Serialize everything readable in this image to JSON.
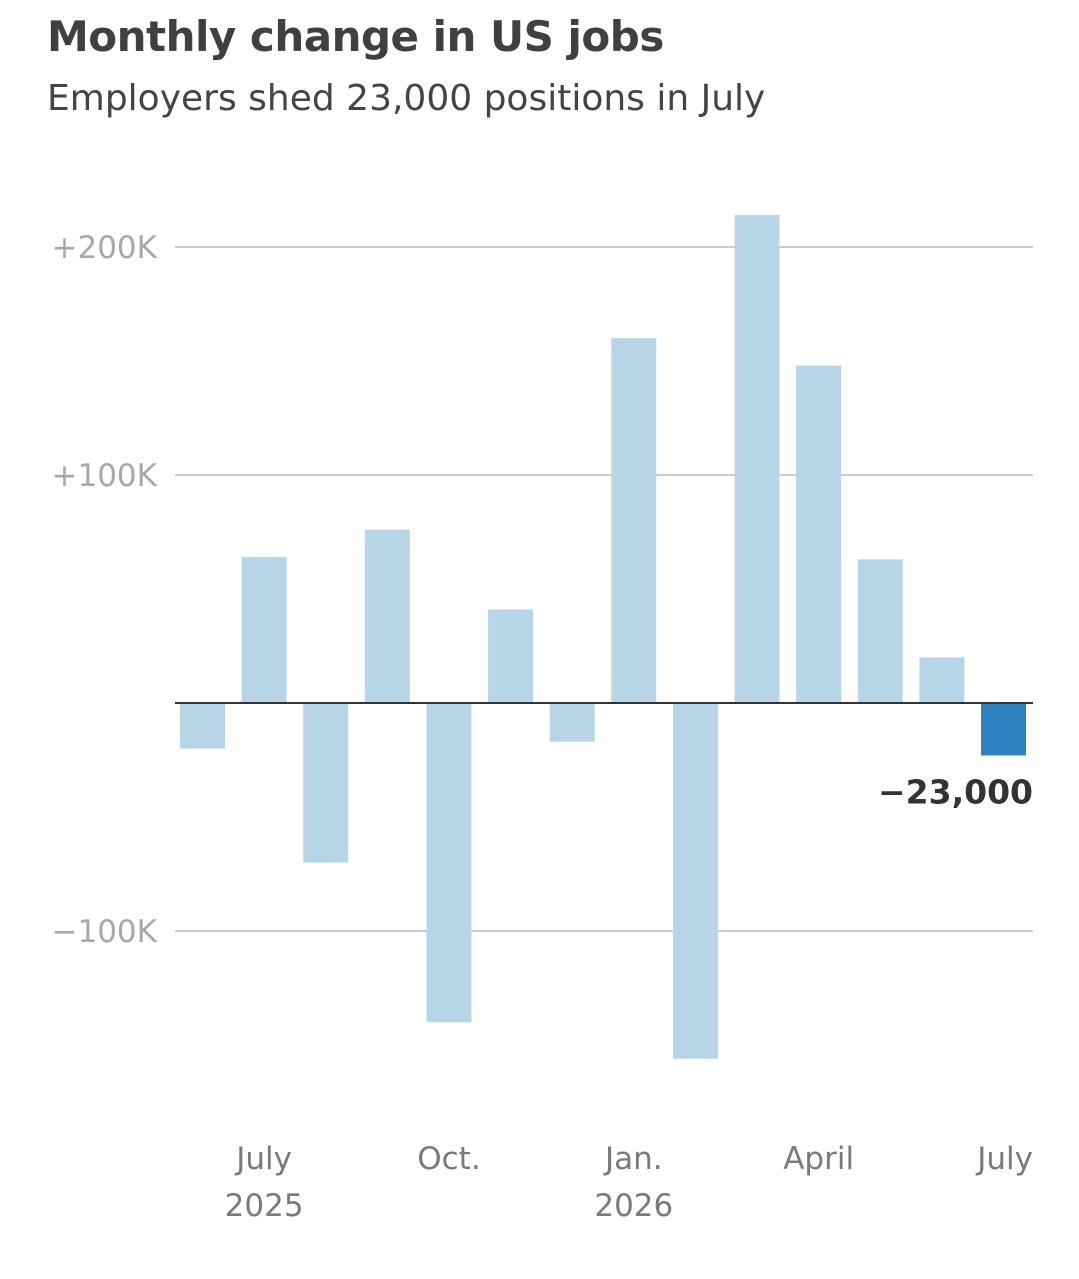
{
  "header": {
    "title": "Monthly change in US jobs",
    "subtitle": "Employers shed 23,000 positions in July"
  },
  "chart_data": {
    "type": "bar",
    "categories": [
      "2025-06",
      "2025-07",
      "2025-08",
      "2025-09",
      "2025-10",
      "2025-11",
      "2025-12",
      "2026-01",
      "2026-02",
      "2026-03",
      "2026-04",
      "2026-05",
      "2026-06",
      "2026-07"
    ],
    "values": [
      -20000,
      64000,
      -70000,
      76000,
      -140000,
      41000,
      -17000,
      160000,
      -156000,
      214000,
      148000,
      63000,
      20000,
      -23000
    ],
    "ylim": [
      -170000,
      225000
    ],
    "y_ticks": [
      {
        "value": 200000,
        "label": "+200K"
      },
      {
        "value": 100000,
        "label": "+100K"
      },
      {
        "value": -100000,
        "label": "−100K"
      }
    ],
    "x_labels": [
      {
        "category": "2025-07",
        "lines": [
          "July",
          "2025"
        ]
      },
      {
        "category": "2025-10",
        "lines": [
          "Oct."
        ]
      },
      {
        "category": "2026-01",
        "lines": [
          "Jan.",
          "2026"
        ]
      },
      {
        "category": "2026-04",
        "lines": [
          "April"
        ]
      },
      {
        "category": "2026-07",
        "lines": [
          "July"
        ]
      }
    ],
    "highlight": {
      "category": "2026-07",
      "label": "−23,000"
    },
    "grid": true,
    "colors": {
      "bar": "#b8d5e7",
      "highlight_bar": "#2f82c0",
      "gridline": "#cccccc",
      "zero_line": "#333333"
    }
  }
}
